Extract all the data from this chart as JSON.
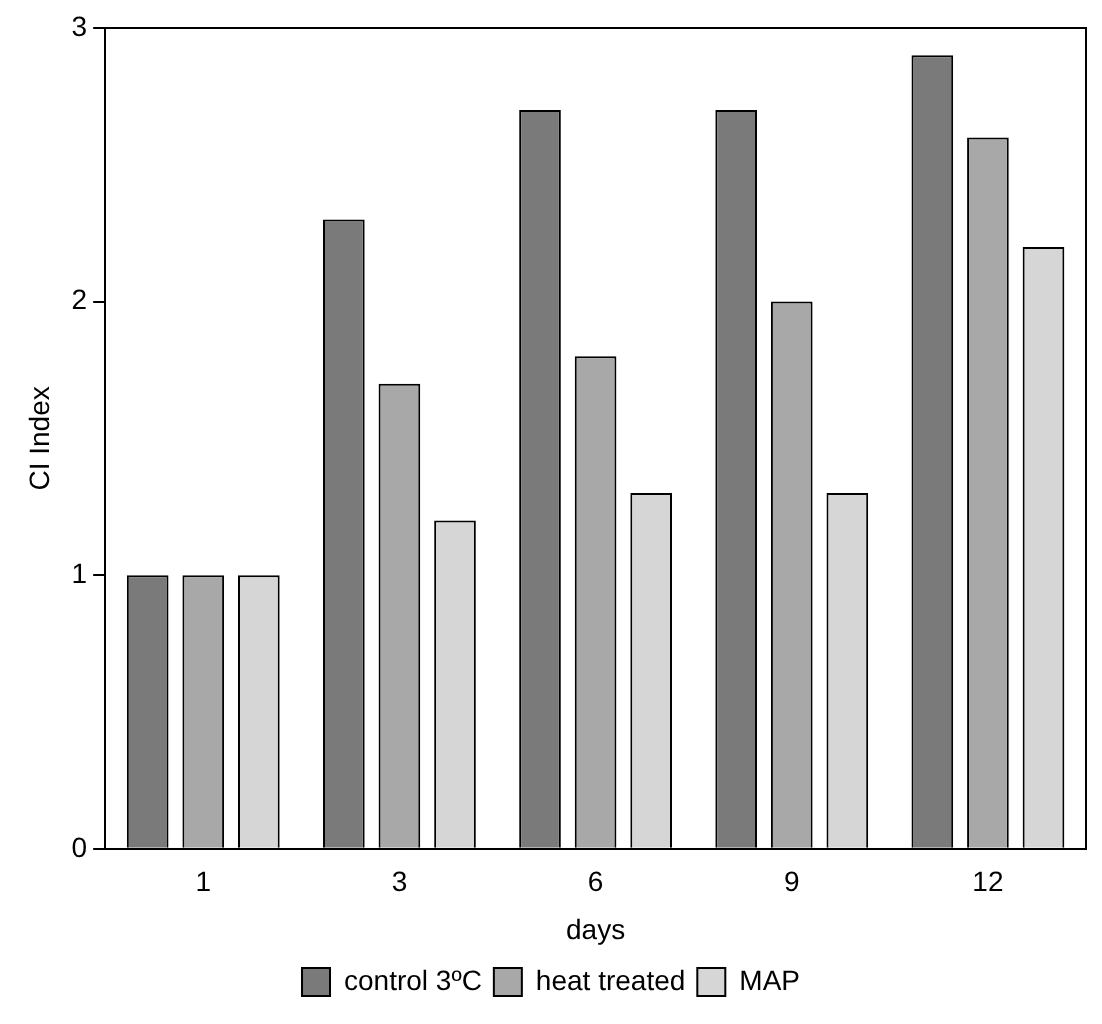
{
  "chart_data": {
    "type": "bar",
    "xlabel": "days",
    "ylabel": "CI Index",
    "categories": [
      "1",
      "3",
      "6",
      "9",
      "12"
    ],
    "series": [
      {
        "name": "control 3ºC",
        "color": "#7a7a7a",
        "values": [
          1,
          2.3,
          2.7,
          2.7,
          2.9
        ]
      },
      {
        "name": "heat treated",
        "color": "#a8a8a8",
        "values": [
          1,
          1.7,
          1.8,
          2.0,
          2.6
        ]
      },
      {
        "name": "MAP",
        "color": "#d6d6d6",
        "values": [
          1,
          1.2,
          1.3,
          1.3,
          2.2
        ]
      }
    ],
    "ylim": [
      0,
      3
    ],
    "yticks": [
      0,
      1,
      2,
      3
    ],
    "grid": false,
    "legend": "bottom"
  }
}
